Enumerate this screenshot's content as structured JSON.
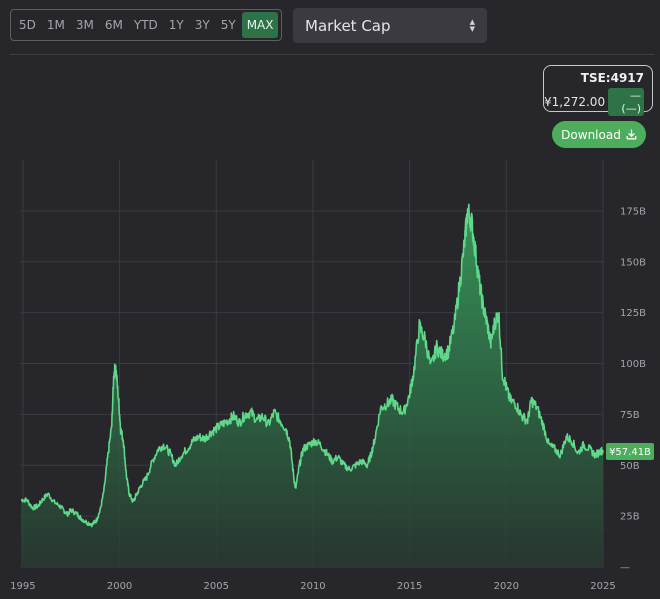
{
  "range_buttons": [
    "5D",
    "1M",
    "3M",
    "6M",
    "YTD",
    "1Y",
    "3Y",
    "5Y",
    "MAX"
  ],
  "active_range": "MAX",
  "metric_select": {
    "value": "Market Cap"
  },
  "ticker": {
    "symbol": "TSE:4917",
    "price": "¥1,272.00",
    "change": "—(—)"
  },
  "download": {
    "label": "Download"
  },
  "colors": {
    "line": "#5fd88a",
    "accent": "#2e7348",
    "button": "#4cae5c",
    "background": "#26262b"
  },
  "chart_data": {
    "type": "area",
    "title": "",
    "xlabel": "",
    "ylabel": "",
    "x_tick_labels": [
      "1995",
      "2000",
      "2005",
      "2010",
      "2015",
      "2020",
      "2025"
    ],
    "y_tick_labels": [
      "—",
      "25B",
      "50B",
      "75B",
      "100B",
      "125B",
      "150B",
      "175B"
    ],
    "xlim": [
      1994.85,
      2025.0
    ],
    "ylim": [
      0,
      200
    ],
    "last_value_label": "¥57.41B",
    "series": [
      {
        "x": [
          1994.9,
          1995.2,
          1995.5,
          1995.8,
          1996.0,
          1996.3,
          1996.6,
          1996.9,
          1997.1,
          1997.3,
          1997.5,
          1997.8,
          1998.0,
          1998.3,
          1998.6,
          1998.8,
          1999.0,
          1999.2,
          1999.4,
          1999.6,
          1999.7,
          1999.8,
          1999.95,
          2000.05,
          2000.2,
          2000.35,
          2000.5,
          2000.7,
          2000.9,
          2001.1,
          2001.4,
          2001.7,
          2002.0,
          2002.3,
          2002.6,
          2002.9,
          2003.2,
          2003.5,
          2003.8,
          2004.1,
          2004.4,
          2004.7,
          2005.0,
          2005.3,
          2005.6,
          2005.9,
          2006.2,
          2006.5,
          2006.8,
          2007.1,
          2007.4,
          2007.7,
          2008.0,
          2008.3,
          2008.6,
          2008.8,
          2009.0,
          2009.1,
          2009.3,
          2009.5,
          2009.8,
          2010.1,
          2010.4,
          2010.7,
          2011.0,
          2011.3,
          2011.6,
          2011.9,
          2012.2,
          2012.5,
          2012.8,
          2013.0,
          2013.2,
          2013.5,
          2013.8,
          2014.1,
          2014.4,
          2014.7,
          2015.0,
          2015.2,
          2015.5,
          2015.8,
          2016.1,
          2016.4,
          2016.7,
          2017.0,
          2017.3,
          2017.6,
          2017.85,
          2018.0,
          2018.2,
          2018.4,
          2018.6,
          2018.8,
          2019.0,
          2019.2,
          2019.4,
          2019.6,
          2019.8,
          2020.0,
          2020.2,
          2020.5,
          2020.8,
          2021.1,
          2021.3,
          2021.6,
          2021.9,
          2022.2,
          2022.5,
          2022.8,
          2023.1,
          2023.4,
          2023.7,
          2024.0,
          2024.3,
          2024.6,
          2024.9,
          2025.0
        ],
        "values": [
          33,
          33,
          29,
          30,
          33,
          36,
          32,
          30,
          28,
          26,
          28,
          26,
          24,
          22,
          21,
          23,
          28,
          38,
          55,
          70,
          95,
          98,
          82,
          68,
          62,
          45,
          36,
          32,
          36,
          40,
          44,
          52,
          58,
          60,
          56,
          50,
          55,
          58,
          62,
          64,
          63,
          66,
          68,
          70,
          72,
          74,
          71,
          75,
          76,
          72,
          74,
          70,
          76,
          72,
          68,
          62,
          45,
          38,
          50,
          58,
          60,
          62,
          60,
          56,
          52,
          54,
          50,
          48,
          50,
          52,
          50,
          55,
          63,
          78,
          80,
          82,
          78,
          76,
          85,
          95,
          118,
          112,
          98,
          108,
          104,
          106,
          118,
          140,
          160,
          175,
          170,
          155,
          140,
          128,
          120,
          110,
          120,
          125,
          95,
          88,
          82,
          80,
          74,
          72,
          82,
          78,
          70,
          60,
          58,
          55,
          64,
          62,
          56,
          60,
          58,
          55,
          57,
          57.4
        ]
      }
    ]
  }
}
